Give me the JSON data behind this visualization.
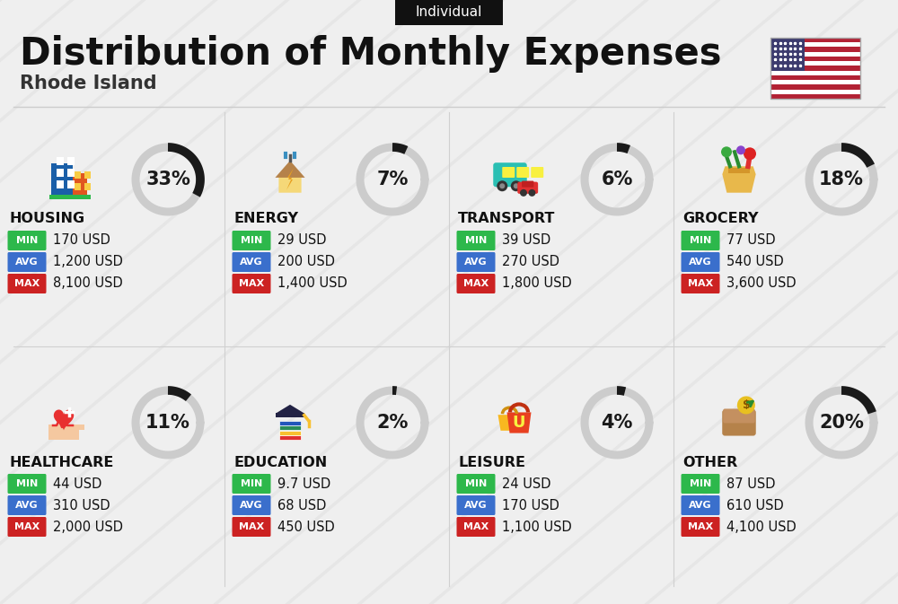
{
  "title": "Distribution of Monthly Expenses",
  "subtitle": "Rhode Island",
  "badge": "Individual",
  "bg_color": "#efefef",
  "categories": [
    {
      "name": "HOUSING",
      "pct": 33,
      "min": "170 USD",
      "avg": "1,200 USD",
      "max": "8,100 USD",
      "icon": "housing",
      "row": 0,
      "col": 0
    },
    {
      "name": "ENERGY",
      "pct": 7,
      "min": "29 USD",
      "avg": "200 USD",
      "max": "1,400 USD",
      "icon": "energy",
      "row": 0,
      "col": 1
    },
    {
      "name": "TRANSPORT",
      "pct": 6,
      "min": "39 USD",
      "avg": "270 USD",
      "max": "1,800 USD",
      "icon": "transport",
      "row": 0,
      "col": 2
    },
    {
      "name": "GROCERY",
      "pct": 18,
      "min": "77 USD",
      "avg": "540 USD",
      "max": "3,600 USD",
      "icon": "grocery",
      "row": 0,
      "col": 3
    },
    {
      "name": "HEALTHCARE",
      "pct": 11,
      "min": "44 USD",
      "avg": "310 USD",
      "max": "2,000 USD",
      "icon": "healthcare",
      "row": 1,
      "col": 0
    },
    {
      "name": "EDUCATION",
      "pct": 2,
      "min": "9.7 USD",
      "avg": "68 USD",
      "max": "450 USD",
      "icon": "education",
      "row": 1,
      "col": 1
    },
    {
      "name": "LEISURE",
      "pct": 4,
      "min": "24 USD",
      "avg": "170 USD",
      "max": "1,100 USD",
      "icon": "leisure",
      "row": 1,
      "col": 2
    },
    {
      "name": "OTHER",
      "pct": 20,
      "min": "87 USD",
      "avg": "610 USD",
      "max": "4,100 USD",
      "icon": "other",
      "row": 1,
      "col": 3
    }
  ],
  "min_color": "#2db84b",
  "avg_color": "#3a6fcc",
  "max_color": "#cc2222",
  "badge_bg": "#111111",
  "badge_fg": "#ffffff",
  "donut_bg": "#cccccc",
  "donut_fg": "#1a1a1a",
  "title_color": "#111111",
  "subtitle_color": "#333333",
  "header_line_color": "#cccccc",
  "divider_color": "#d0d0d0",
  "shadow_color": "#e0e0e0",
  "flag_red": "#B22234",
  "flag_blue": "#3C3B6E"
}
